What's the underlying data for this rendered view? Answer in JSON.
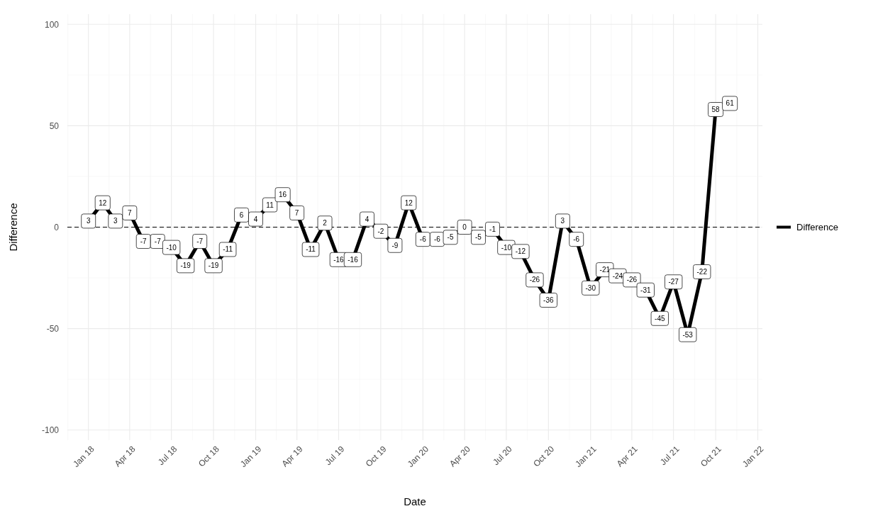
{
  "chart_data": {
    "type": "line",
    "xlabel": "Date",
    "ylabel": "Difference",
    "x": [
      "2018-01",
      "2018-02",
      "2018-03",
      "2018-04",
      "2018-05",
      "2018-06",
      "2018-07",
      "2018-08",
      "2018-09",
      "2018-10",
      "2018-11",
      "2018-12",
      "2019-01",
      "2019-02",
      "2019-03",
      "2019-04",
      "2019-05",
      "2019-06",
      "2019-07",
      "2019-08",
      "2019-09",
      "2019-10",
      "2019-11",
      "2019-12",
      "2020-01",
      "2020-02",
      "2020-03",
      "2020-04",
      "2020-05",
      "2020-06",
      "2020-07",
      "2020-08",
      "2020-09",
      "2020-10",
      "2020-11",
      "2020-12",
      "2021-01",
      "2021-02",
      "2021-03",
      "2021-04",
      "2021-05",
      "2021-06",
      "2021-07",
      "2021-08",
      "2021-09",
      "2021-10",
      "2021-11"
    ],
    "series": [
      {
        "name": "Difference",
        "color": "#000000",
        "values": [
          3,
          12,
          3,
          7,
          -7,
          -7,
          -10,
          -19,
          -7,
          -19,
          -11,
          6,
          4,
          11,
          16,
          7,
          -11,
          2,
          -16,
          -16,
          4,
          -2,
          -9,
          12,
          -6,
          -6,
          -5,
          0,
          -5,
          -1,
          -10,
          -12,
          -26,
          -36,
          3,
          -6,
          -30,
          -21,
          -24,
          -26,
          -31,
          -45,
          -27,
          -53,
          -22,
          58,
          61
        ]
      }
    ],
    "data_labels": true,
    "xlim": [
      "2017-11-16",
      "2022-01-11"
    ],
    "xticks": [
      {
        "value": "2018-01-01",
        "label": "Jan 18"
      },
      {
        "value": "2018-04-01",
        "label": "Apr 18"
      },
      {
        "value": "2018-07-01",
        "label": "Jul 18"
      },
      {
        "value": "2018-10-01",
        "label": "Oct 18"
      },
      {
        "value": "2019-01-01",
        "label": "Jan 19"
      },
      {
        "value": "2019-04-01",
        "label": "Apr 19"
      },
      {
        "value": "2019-07-01",
        "label": "Jul 19"
      },
      {
        "value": "2019-10-01",
        "label": "Oct 19"
      },
      {
        "value": "2020-01-01",
        "label": "Jan 20"
      },
      {
        "value": "2020-04-01",
        "label": "Apr 20"
      },
      {
        "value": "2020-07-01",
        "label": "Jul 20"
      },
      {
        "value": "2020-10-01",
        "label": "Oct 20"
      },
      {
        "value": "2021-01-01",
        "label": "Jan 21"
      },
      {
        "value": "2021-04-01",
        "label": "Apr 21"
      },
      {
        "value": "2021-07-01",
        "label": "Jul 21"
      },
      {
        "value": "2021-10-01",
        "label": "Oct 21"
      },
      {
        "value": "2022-01-01",
        "label": "Jan 22"
      }
    ],
    "ylim": [
      -105,
      105
    ],
    "yticks": [
      -100,
      -50,
      0,
      50,
      100
    ],
    "grid": true,
    "legend": "right",
    "line_style": "solid",
    "marker": "square",
    "ref_lines": [
      {
        "axis": "y",
        "value": 0,
        "line_style": "dashed",
        "color": "#000000"
      }
    ]
  }
}
